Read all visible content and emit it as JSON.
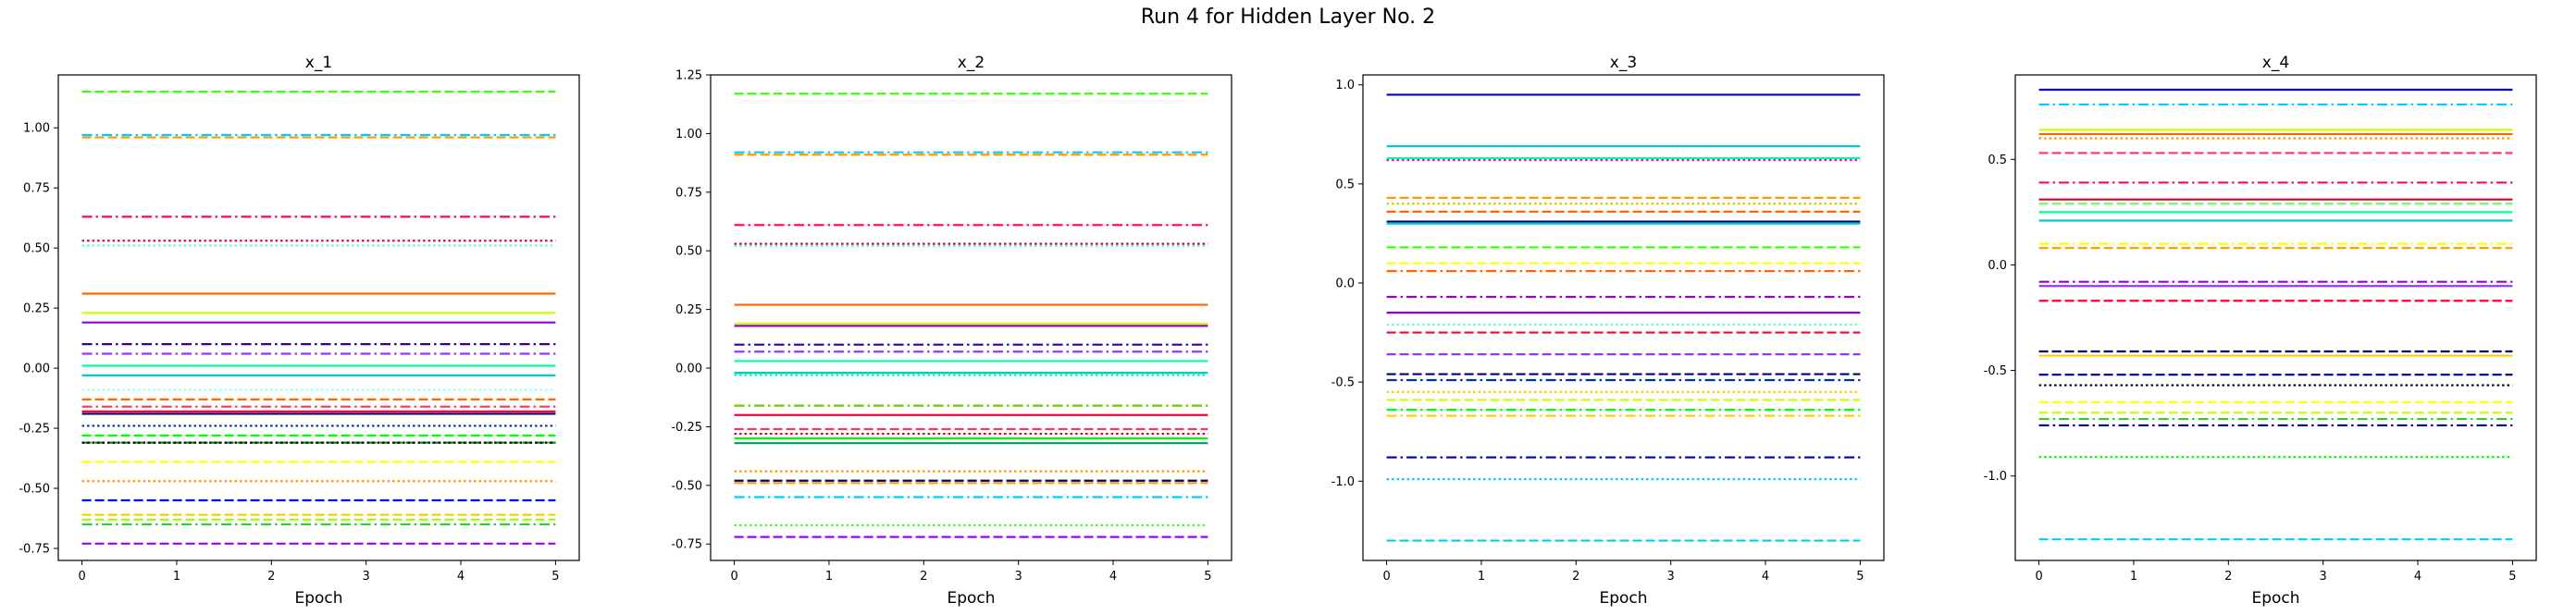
{
  "figure": {
    "title": "Run 4 for Hidden Layer No. 2"
  },
  "chart_data": [
    {
      "type": "line",
      "title": "x_1",
      "xlabel": "Epoch",
      "ylabel": "",
      "x": [
        0,
        1,
        2,
        3,
        4,
        5
      ],
      "xlim": [
        -0.25,
        5.25
      ],
      "ylim": [
        -0.8,
        1.22
      ],
      "yticks": [
        "-0.75",
        "-0.50",
        "-0.25",
        "0.00",
        "0.25",
        "0.50",
        "0.75",
        "1.00"
      ],
      "ytick_values": [
        -0.75,
        -0.5,
        -0.25,
        0.0,
        0.25,
        0.5,
        0.75,
        1.0
      ],
      "xticks": [
        "0",
        "1",
        "2",
        "3",
        "4",
        "5"
      ],
      "grid": false,
      "series": [
        {
          "value": 1.15,
          "color": "#33ff00",
          "dash": "dashed"
        },
        {
          "value": 0.97,
          "color": "#00ccff",
          "dash": "dashdot"
        },
        {
          "value": 0.96,
          "color": "#ff9900",
          "dash": "dashed"
        },
        {
          "value": 0.63,
          "color": "#ff0066",
          "dash": "dashdot"
        },
        {
          "value": 0.53,
          "color": "#cc0033",
          "dash": "dotted"
        },
        {
          "value": 0.51,
          "color": "#66ffcc",
          "dash": "dotted"
        },
        {
          "value": 0.31,
          "color": "#ff6600",
          "dash": "solid"
        },
        {
          "value": 0.23,
          "color": "#ccff00",
          "dash": "solid"
        },
        {
          "value": 0.19,
          "color": "#9900cc",
          "dash": "solid"
        },
        {
          "value": 0.1,
          "color": "#330099",
          "dash": "dashdot"
        },
        {
          "value": 0.06,
          "color": "#9933ff",
          "dash": "dashdot"
        },
        {
          "value": 0.01,
          "color": "#00ff99",
          "dash": "solid"
        },
        {
          "value": -0.03,
          "color": "#00cccc",
          "dash": "solid"
        },
        {
          "value": -0.09,
          "color": "#99ffff",
          "dash": "dotted"
        },
        {
          "value": -0.13,
          "color": "#ff6600",
          "dash": "dashed"
        },
        {
          "value": -0.16,
          "color": "#ff3366",
          "dash": "dashdot"
        },
        {
          "value": -0.18,
          "color": "#ff0033",
          "dash": "solid"
        },
        {
          "value": -0.19,
          "color": "#000066",
          "dash": "solid"
        },
        {
          "value": -0.24,
          "color": "#003399",
          "dash": "dotted"
        },
        {
          "value": -0.28,
          "color": "#00ff00",
          "dash": "dashed"
        },
        {
          "value": -0.31,
          "color": "#009900",
          "dash": "dashed"
        },
        {
          "value": -0.31,
          "color": "#000000",
          "dash": "dotted"
        },
        {
          "value": -0.39,
          "color": "#ffff00",
          "dash": "dashed"
        },
        {
          "value": -0.47,
          "color": "#ff9900",
          "dash": "dotted"
        },
        {
          "value": -0.55,
          "color": "#0000ff",
          "dash": "dashed"
        },
        {
          "value": -0.61,
          "color": "#ffcc00",
          "dash": "dashed"
        },
        {
          "value": -0.63,
          "color": "#99ff00",
          "dash": "dashed"
        },
        {
          "value": -0.65,
          "color": "#33cc33",
          "dash": "dashdot"
        },
        {
          "value": -0.73,
          "color": "#9900ff",
          "dash": "dashed"
        }
      ]
    },
    {
      "type": "line",
      "title": "x_2",
      "xlabel": "Epoch",
      "ylabel": "",
      "x": [
        0,
        1,
        2,
        3,
        4,
        5
      ],
      "xlim": [
        -0.25,
        5.25
      ],
      "ylim": [
        -0.82,
        1.25
      ],
      "yticks": [
        "-0.75",
        "-0.50",
        "-0.25",
        "0.00",
        "0.25",
        "0.50",
        "0.75",
        "1.00",
        "1.25"
      ],
      "ytick_values": [
        -0.75,
        -0.5,
        -0.25,
        0.0,
        0.25,
        0.5,
        0.75,
        1.0,
        1.25
      ],
      "xticks": [
        "0",
        "1",
        "2",
        "3",
        "4",
        "5"
      ],
      "grid": false,
      "series": [
        {
          "value": 1.17,
          "color": "#33ff00",
          "dash": "dashed"
        },
        {
          "value": 0.92,
          "color": "#00ccff",
          "dash": "dashdot"
        },
        {
          "value": 0.91,
          "color": "#ff9900",
          "dash": "dashed"
        },
        {
          "value": 0.61,
          "color": "#ff0066",
          "dash": "dashdot"
        },
        {
          "value": 0.53,
          "color": "#cc0033",
          "dash": "dotted"
        },
        {
          "value": 0.52,
          "color": "#66ffcc",
          "dash": "dotted"
        },
        {
          "value": 0.27,
          "color": "#ff6600",
          "dash": "solid"
        },
        {
          "value": 0.19,
          "color": "#ccff00",
          "dash": "solid"
        },
        {
          "value": 0.18,
          "color": "#9900cc",
          "dash": "solid"
        },
        {
          "value": 0.1,
          "color": "#330099",
          "dash": "dashdot"
        },
        {
          "value": 0.07,
          "color": "#9933ff",
          "dash": "dashdot"
        },
        {
          "value": 0.03,
          "color": "#00ff99",
          "dash": "solid"
        },
        {
          "value": -0.02,
          "color": "#00cccc",
          "dash": "solid"
        },
        {
          "value": -0.03,
          "color": "#00ff99",
          "dash": "dotted"
        },
        {
          "value": -0.16,
          "color": "#66cc00",
          "dash": "dashdot"
        },
        {
          "value": -0.2,
          "color": "#ff0033",
          "dash": "solid"
        },
        {
          "value": -0.26,
          "color": "#ff3366",
          "dash": "dashed"
        },
        {
          "value": -0.28,
          "color": "#cc0033",
          "dash": "dotted"
        },
        {
          "value": -0.3,
          "color": "#00ff00",
          "dash": "solid"
        },
        {
          "value": -0.32,
          "color": "#009966",
          "dash": "solid"
        },
        {
          "value": -0.44,
          "color": "#ff9900",
          "dash": "dotted"
        },
        {
          "value": -0.48,
          "color": "#000066",
          "dash": "dashed"
        },
        {
          "value": -0.49,
          "color": "#ff9900",
          "dash": "dashed"
        },
        {
          "value": -0.55,
          "color": "#00ccff",
          "dash": "dashdot"
        },
        {
          "value": -0.67,
          "color": "#33ff33",
          "dash": "dotted"
        },
        {
          "value": -0.72,
          "color": "#9900ff",
          "dash": "dashed"
        }
      ]
    },
    {
      "type": "line",
      "title": "x_3",
      "xlabel": "Epoch",
      "ylabel": "",
      "x": [
        0,
        1,
        2,
        3,
        4,
        5
      ],
      "xlim": [
        -0.25,
        5.25
      ],
      "ylim": [
        -1.4,
        1.05
      ],
      "yticks": [
        "-1.0",
        "-0.5",
        "0.0",
        "0.5",
        "1.0"
      ],
      "ytick_values": [
        -1.0,
        -0.5,
        0.0,
        0.5,
        1.0
      ],
      "xticks": [
        "0",
        "1",
        "2",
        "3",
        "4",
        "5"
      ],
      "grid": false,
      "series": [
        {
          "value": 0.95,
          "color": "#0000cc",
          "dash": "solid"
        },
        {
          "value": 0.69,
          "color": "#00cccc",
          "dash": "solid"
        },
        {
          "value": 0.63,
          "color": "#00ff99",
          "dash": "solid"
        },
        {
          "value": 0.62,
          "color": "#ff00cc",
          "dash": "dotted"
        },
        {
          "value": 0.43,
          "color": "#ff9900",
          "dash": "dashed"
        },
        {
          "value": 0.4,
          "color": "#cccc00",
          "dash": "dotted"
        },
        {
          "value": 0.36,
          "color": "#ff6600",
          "dash": "dashed"
        },
        {
          "value": 0.31,
          "color": "#000066",
          "dash": "solid"
        },
        {
          "value": 0.3,
          "color": "#00cccc",
          "dash": "solid"
        },
        {
          "value": 0.18,
          "color": "#33ff00",
          "dash": "dashed"
        },
        {
          "value": 0.1,
          "color": "#ffff00",
          "dash": "dashed"
        },
        {
          "value": 0.06,
          "color": "#ff6600",
          "dash": "dashdot"
        },
        {
          "value": -0.07,
          "color": "#9900cc",
          "dash": "dashdot"
        },
        {
          "value": -0.15,
          "color": "#9900cc",
          "dash": "solid"
        },
        {
          "value": -0.21,
          "color": "#66ffcc",
          "dash": "dotted"
        },
        {
          "value": -0.25,
          "color": "#ff0033",
          "dash": "dashed"
        },
        {
          "value": -0.36,
          "color": "#9933ff",
          "dash": "dashed"
        },
        {
          "value": -0.46,
          "color": "#000066",
          "dash": "dashed"
        },
        {
          "value": -0.49,
          "color": "#003399",
          "dash": "dashdot"
        },
        {
          "value": -0.55,
          "color": "#ffcc00",
          "dash": "dotted"
        },
        {
          "value": -0.59,
          "color": "#ccff00",
          "dash": "dashed"
        },
        {
          "value": -0.64,
          "color": "#00ff00",
          "dash": "dashdot"
        },
        {
          "value": -0.67,
          "color": "#ffcc00",
          "dash": "dashdot"
        },
        {
          "value": -0.88,
          "color": "#000099",
          "dash": "dashdot"
        },
        {
          "value": -0.99,
          "color": "#00ccff",
          "dash": "dotted"
        },
        {
          "value": -1.3,
          "color": "#00ccff",
          "dash": "dashed"
        }
      ]
    },
    {
      "type": "line",
      "title": "x_4",
      "xlabel": "Epoch",
      "ylabel": "",
      "x": [
        0,
        1,
        2,
        3,
        4,
        5
      ],
      "xlim": [
        -0.25,
        5.25
      ],
      "ylim": [
        -1.4,
        0.9
      ],
      "yticks": [
        "-1.0",
        "-0.5",
        "0.0",
        "0.5"
      ],
      "ytick_values": [
        -1.0,
        -0.5,
        0.0,
        0.5
      ],
      "xticks": [
        "0",
        "1",
        "2",
        "3",
        "4",
        "5"
      ],
      "grid": false,
      "series": [
        {
          "value": 0.83,
          "color": "#0000cc",
          "dash": "solid"
        },
        {
          "value": 0.76,
          "color": "#00ccff",
          "dash": "dashdot"
        },
        {
          "value": 0.64,
          "color": "#ccff00",
          "dash": "solid"
        },
        {
          "value": 0.62,
          "color": "#ff6600",
          "dash": "solid"
        },
        {
          "value": 0.6,
          "color": "#ff9900",
          "dash": "dotted"
        },
        {
          "value": 0.53,
          "color": "#ff3366",
          "dash": "dashed"
        },
        {
          "value": 0.39,
          "color": "#ff0066",
          "dash": "dashdot"
        },
        {
          "value": 0.31,
          "color": "#cc0033",
          "dash": "solid"
        },
        {
          "value": 0.29,
          "color": "#66ff66",
          "dash": "dashed"
        },
        {
          "value": 0.25,
          "color": "#00ff99",
          "dash": "solid"
        },
        {
          "value": 0.21,
          "color": "#00cccc",
          "dash": "solid"
        },
        {
          "value": 0.1,
          "color": "#ffff00",
          "dash": "dashdot"
        },
        {
          "value": 0.08,
          "color": "#ff9900",
          "dash": "dashed"
        },
        {
          "value": -0.08,
          "color": "#9900cc",
          "dash": "dashdot"
        },
        {
          "value": -0.1,
          "color": "#9933ff",
          "dash": "solid"
        },
        {
          "value": -0.17,
          "color": "#ff0033",
          "dash": "dashed"
        },
        {
          "value": -0.41,
          "color": "#000066",
          "dash": "dashed"
        },
        {
          "value": -0.43,
          "color": "#ffcc00",
          "dash": "solid"
        },
        {
          "value": -0.52,
          "color": "#000099",
          "dash": "dashed"
        },
        {
          "value": -0.57,
          "color": "#000000",
          "dash": "dotted"
        },
        {
          "value": -0.65,
          "color": "#ffff00",
          "dash": "dashed"
        },
        {
          "value": -0.7,
          "color": "#ccff00",
          "dash": "dashed"
        },
        {
          "value": -0.73,
          "color": "#33cc33",
          "dash": "dashdot"
        },
        {
          "value": -0.76,
          "color": "#000099",
          "dash": "dashdot"
        },
        {
          "value": -0.91,
          "color": "#00ff00",
          "dash": "dotted"
        },
        {
          "value": -1.3,
          "color": "#00ccff",
          "dash": "dashed"
        }
      ]
    }
  ]
}
